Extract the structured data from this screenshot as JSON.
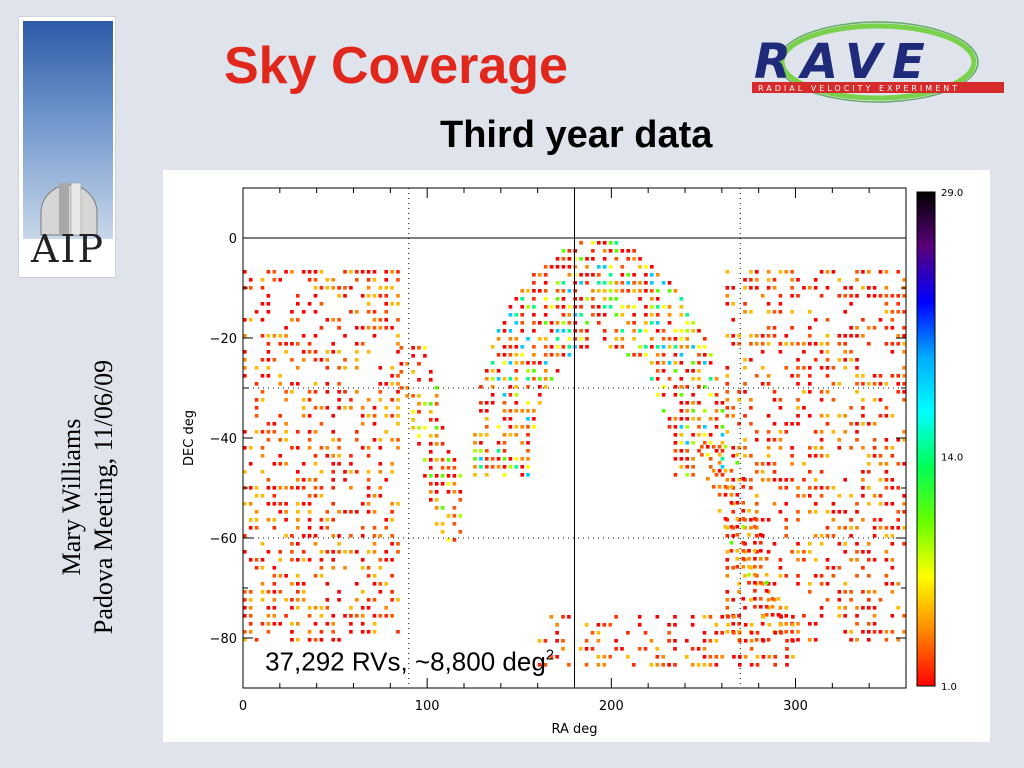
{
  "slide": {
    "title": "Sky Coverage",
    "subtitle": "Third year data",
    "author_line1": "Mary Williams",
    "author_line2": "Padova Meeting, 11/06/09"
  },
  "logos": {
    "aip_text": "AIP",
    "rave_text": "RAVE",
    "rave_tagline": "RADIAL VELOCITY EXPERIMENT"
  },
  "chart_data": {
    "type": "heatmap",
    "title": "",
    "xlabel": "RA deg",
    "ylabel": "DEC deg",
    "xlim": [
      0,
      360
    ],
    "ylim": [
      -90,
      10
    ],
    "x_ticks": [
      0,
      100,
      200,
      300
    ],
    "y_ticks": [
      0,
      -20,
      -40,
      -60,
      -80
    ],
    "reference_lines": {
      "dec": [
        0
      ],
      "ra": [
        180
      ]
    },
    "dotted_grid": {
      "ra": [
        90,
        270
      ],
      "dec": [
        -30,
        -60
      ]
    },
    "annotation": {
      "text": "37,292 RVs, ~8,800 deg",
      "superscript": "2"
    },
    "colorbar": {
      "min": 1.0,
      "mid": 14.0,
      "max": 29.0,
      "labels": [
        "29.0",
        "14.0",
        "1.0"
      ],
      "colors": [
        "#000000",
        "#5a007a",
        "#0000ff",
        "#00aaff",
        "#00ffff",
        "#00ff55",
        "#66ff00",
        "#ffff00",
        "#ff8800",
        "#ff0000"
      ]
    },
    "coverage_regions": [
      {
        "name": "south-pole-arc",
        "ra": [
          125,
          262
        ],
        "dec": [
          -47,
          0
        ],
        "density": "high"
      },
      {
        "name": "galactic-plane-band-1",
        "ra": [
          85,
          120
        ],
        "dec": [
          -60,
          -20
        ],
        "density": "medium"
      },
      {
        "name": "west-field",
        "ra": [
          0,
          85
        ],
        "dec": [
          -80,
          -5
        ],
        "density": "low"
      },
      {
        "name": "east-field",
        "ra": [
          262,
          360
        ],
        "dec": [
          -80,
          -5
        ],
        "density": "low"
      },
      {
        "name": "galactic-plane-band-2",
        "ra": [
          245,
          290
        ],
        "dec": [
          -75,
          -40
        ],
        "density": "medium"
      },
      {
        "name": "southern-strip",
        "ra": [
          160,
          300
        ],
        "dec": [
          -85,
          -75
        ],
        "density": "low"
      }
    ]
  }
}
